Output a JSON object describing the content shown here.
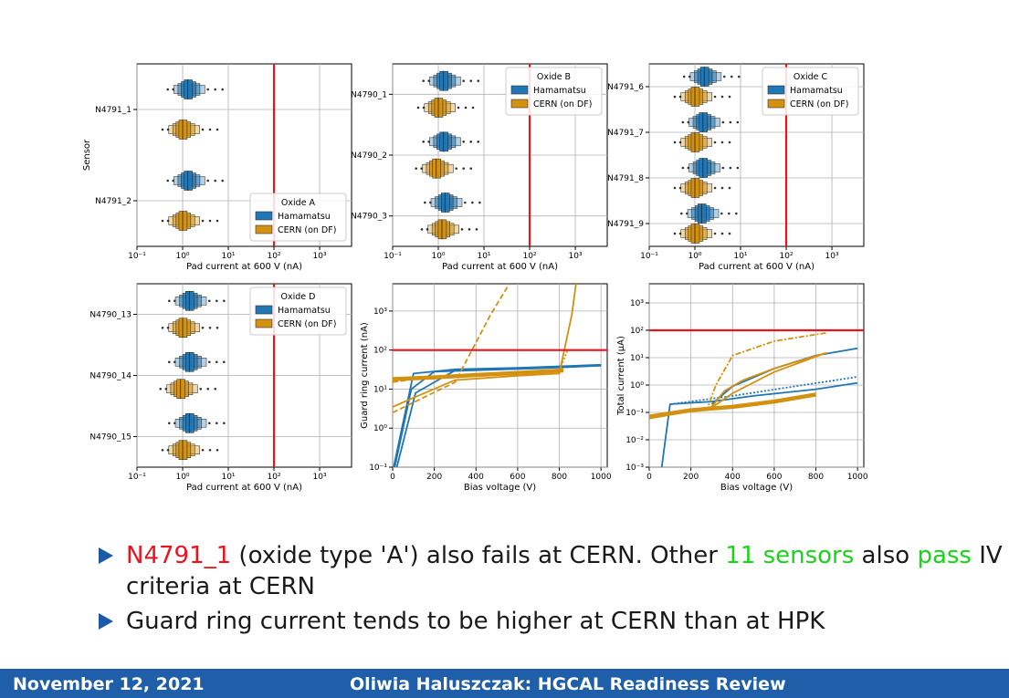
{
  "colors": {
    "hamamatsu": "#1f77b4",
    "cern": "#d4900f",
    "limit": "#e8141e",
    "footer_bg": "#1f5ea8",
    "bullet_red": "#e8141e",
    "bullet_green": "#19d419"
  },
  "legend_labels": {
    "hamamatsu": "Hamamatsu",
    "cern": "CERN (on DF)"
  },
  "chart_data": [
    {
      "type": "boxen",
      "title": "",
      "legend_title": "Oxide A",
      "legend_position": "lower-right",
      "ylabel": "Sensor",
      "xlabel": "Pad current at 600 V (nA)",
      "xscale": "log",
      "xlim": [
        0.1,
        5000
      ],
      "xticks": [
        "10⁻¹",
        "10⁰",
        "10¹",
        "10²",
        "10³"
      ],
      "limit_line": 100,
      "sensors": [
        "N4791_1",
        "N4791_2"
      ],
      "series": [
        {
          "name": "Hamamatsu",
          "medians": [
            1.3,
            1.3
          ]
        },
        {
          "name": "CERN (on DF)",
          "medians": [
            1.0,
            1.0
          ]
        }
      ]
    },
    {
      "type": "boxen",
      "title": "",
      "legend_title": "Oxide B",
      "legend_position": "upper-right",
      "ylabel": "",
      "xlabel": "Pad current at 600 V (nA)",
      "xscale": "log",
      "xlim": [
        0.1,
        5000
      ],
      "xticks": [
        "10⁻¹",
        "10⁰",
        "10¹",
        "10²",
        "10³"
      ],
      "limit_line": 100,
      "sensors": [
        "N4790_1",
        "N4790_2",
        "N4790_3"
      ],
      "series": [
        {
          "name": "Hamamatsu",
          "medians": [
            1.3,
            1.3,
            1.4
          ]
        },
        {
          "name": "CERN (on DF)",
          "medians": [
            1.0,
            0.9,
            1.2
          ]
        }
      ]
    },
    {
      "type": "boxen",
      "title": "",
      "legend_title": "Oxide C",
      "legend_position": "upper-right",
      "ylabel": "",
      "xlabel": "Pad current at 600 V (nA)",
      "xscale": "log",
      "xlim": [
        0.1,
        5000
      ],
      "xticks": [
        "10⁻¹",
        "10⁰",
        "10¹",
        "10²",
        "10³"
      ],
      "limit_line": 100,
      "sensors": [
        "N4791_6",
        "N4791_7",
        "N4791_8",
        "N4791_9"
      ],
      "series": [
        {
          "name": "Hamamatsu",
          "medians": [
            1.6,
            1.5,
            1.5,
            1.4
          ]
        },
        {
          "name": "CERN (on DF)",
          "medians": [
            1.0,
            1.0,
            1.0,
            1.0
          ]
        }
      ]
    },
    {
      "type": "boxen",
      "title": "",
      "legend_title": "Oxide D",
      "legend_position": "upper-right",
      "ylabel": "",
      "xlabel": "Pad current at 600 V (nA)",
      "xscale": "log",
      "xlim": [
        0.1,
        5000
      ],
      "xticks": [
        "10⁻¹",
        "10⁰",
        "10¹",
        "10²",
        "10³"
      ],
      "limit_line": 100,
      "sensors": [
        "N4790_13",
        "N4790_14",
        "N4790_15"
      ],
      "series": [
        {
          "name": "Hamamatsu",
          "medians": [
            1.4,
            1.4,
            1.4
          ]
        },
        {
          "name": "CERN (on DF)",
          "medians": [
            1.0,
            0.9,
            1.0
          ]
        }
      ]
    },
    {
      "type": "line",
      "title": "",
      "xlabel": "Bias voltage (V)",
      "ylabel": "Guard ring current (nA)",
      "xlim": [
        0,
        1030
      ],
      "ylim": [
        0.1,
        5000
      ],
      "yscale": "log",
      "xticks": [
        "0",
        "200",
        "400",
        "600",
        "800",
        "1000"
      ],
      "yticks": [
        "10⁻¹",
        "10⁰",
        "10¹",
        "10²",
        "10³"
      ],
      "limit_line": 100,
      "series": [
        {
          "color": "hamamatsu",
          "style": "solid",
          "x": [
            5,
            100,
            300,
            600,
            1000
          ],
          "y": [
            0.1,
            25,
            32,
            35,
            42
          ]
        },
        {
          "color": "hamamatsu",
          "style": "solid",
          "x": [
            10,
            90,
            200,
            600,
            1000
          ],
          "y": [
            0.1,
            10,
            28,
            33,
            40
          ]
        },
        {
          "color": "hamamatsu",
          "style": "solid",
          "x": [
            20,
            110,
            300,
            700,
            1000
          ],
          "y": [
            0.1,
            8,
            30,
            34,
            40
          ]
        },
        {
          "color": "cern",
          "style": "dashed",
          "x": [
            0,
            300,
            470,
            560
          ],
          "y": [
            2.5,
            15,
            800,
            5000
          ]
        },
        {
          "color": "cern",
          "style": "solid",
          "x": [
            0,
            100,
            300,
            600,
            800,
            860,
            880
          ],
          "y": [
            3.5,
            6,
            17,
            22,
            25,
            800,
            5000
          ]
        },
        {
          "color": "cern",
          "style": "dashed",
          "x": [
            0,
            100,
            300,
            600,
            800
          ],
          "y": [
            15,
            18,
            22,
            25,
            28
          ]
        },
        {
          "color": "cern",
          "style": "dotted",
          "x": [
            0,
            200,
            500,
            800,
            840
          ],
          "y": [
            16,
            20,
            24,
            30,
            100
          ]
        },
        {
          "color": "cern",
          "style": "thick",
          "x": [
            0,
            200,
            400,
            600,
            820
          ],
          "y": [
            18,
            20,
            23,
            26,
            30
          ]
        }
      ]
    },
    {
      "type": "line",
      "title": "",
      "xlabel": "Bias voltage (V)",
      "ylabel": "Total current (μA)",
      "xlim": [
        0,
        1030
      ],
      "ylim": [
        0.001,
        5000
      ],
      "yscale": "log",
      "xticks": [
        "0",
        "200",
        "400",
        "600",
        "800",
        "1000"
      ],
      "yticks": [
        "10⁻³",
        "10⁻²",
        "10⁻¹",
        "10⁰",
        "10¹",
        "10²",
        "10³"
      ],
      "limit_line": 100,
      "series": [
        {
          "color": "hamamatsu",
          "style": "solid",
          "x": [
            60,
            100,
            300,
            500,
            800,
            1000
          ],
          "y": [
            0.001,
            0.2,
            0.25,
            0.4,
            0.7,
            1.2
          ]
        },
        {
          "color": "hamamatsu",
          "style": "dotted",
          "x": [
            100,
            400,
            700,
            1000
          ],
          "y": [
            0.2,
            0.4,
            0.9,
            2
          ]
        },
        {
          "color": "hamamatsu",
          "style": "solid",
          "x": [
            300,
            400,
            600,
            800,
            1000
          ],
          "y": [
            0.2,
            0.9,
            4,
            12,
            22
          ]
        },
        {
          "color": "cern",
          "style": "dashdot",
          "x": [
            0,
            280,
            320,
            400,
            600,
            800,
            850
          ],
          "y": [
            0.06,
            0.15,
            1.0,
            12,
            40,
            70,
            80
          ]
        },
        {
          "color": "cern",
          "style": "solid",
          "x": [
            0,
            300,
            360,
            450,
            600,
            850
          ],
          "y": [
            0.07,
            0.16,
            0.6,
            1.5,
            4,
            15
          ]
        },
        {
          "color": "cern",
          "style": "solid",
          "x": [
            0,
            300,
            400,
            600,
            850
          ],
          "y": [
            0.06,
            0.15,
            0.5,
            3,
            15
          ]
        },
        {
          "color": "cern",
          "style": "thick",
          "x": [
            0,
            200,
            400,
            600,
            800
          ],
          "y": [
            0.07,
            0.12,
            0.16,
            0.25,
            0.45
          ]
        }
      ]
    }
  ],
  "bullets": {
    "b1_red": "N4791_1",
    "b1_text": " (oxide type 'A') also fails at CERN. Other ",
    "b1_green1": "11 sensors",
    "b1_text2": " also ",
    "b1_green2": "pass",
    "b1_text3": " IV criteria at CERN",
    "b2_text": "Guard ring current tends to be higher at CERN than at HPK"
  },
  "footer": {
    "date": "November 12, 2021",
    "author": "Oliwia Haluszczak: HGCAL Readiness Review"
  }
}
